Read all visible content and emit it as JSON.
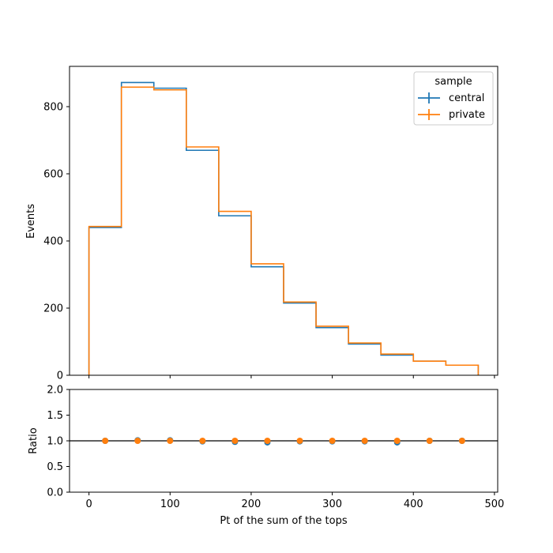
{
  "chart_data": {
    "type": "histogram_with_ratio",
    "xlabel": "Pt of the sum of the tops",
    "top_panel": {
      "ylabel": "Events",
      "xlim": [
        -24,
        504
      ],
      "ylim": [
        0,
        920
      ],
      "yticks": [
        0,
        200,
        400,
        600,
        800
      ],
      "bin_edges": [
        0,
        40,
        80,
        120,
        160,
        200,
        240,
        280,
        320,
        360,
        400,
        440,
        480
      ],
      "series": [
        {
          "name": "central",
          "color": "#1f77b4",
          "values": [
            440,
            872,
            855,
            670,
            475,
            323,
            215,
            142,
            93,
            60,
            42,
            30
          ]
        },
        {
          "name": "private",
          "color": "#ff7f0e",
          "values": [
            443,
            858,
            850,
            680,
            488,
            332,
            218,
            146,
            96,
            63,
            42,
            30
          ]
        }
      ],
      "legend": {
        "title": "sample",
        "placement": "upper-right"
      }
    },
    "ratio_panel": {
      "ylabel": "Ratio",
      "ylim": [
        0,
        2
      ],
      "yticks": [
        "0.0",
        "0.5",
        "1.0",
        "1.5",
        "2.0"
      ],
      "reference_line": 1.0,
      "x": [
        20,
        60,
        100,
        140,
        180,
        220,
        260,
        300,
        340,
        380,
        420,
        460
      ],
      "series": [
        {
          "name": "central",
          "color": "#1f77b4",
          "values": [
            1.0,
            1.01,
            1.01,
            0.99,
            0.98,
            0.97,
            0.99,
            0.99,
            0.99,
            0.97,
            1.0,
            1.0
          ]
        },
        {
          "name": "private",
          "color": "#ff7f0e",
          "values": [
            1.0,
            1.0,
            1.0,
            1.0,
            1.0,
            1.0,
            1.0,
            1.0,
            1.0,
            1.0,
            1.0,
            1.0
          ]
        }
      ]
    },
    "xticks": [
      0,
      100,
      200,
      300,
      400,
      500
    ]
  }
}
